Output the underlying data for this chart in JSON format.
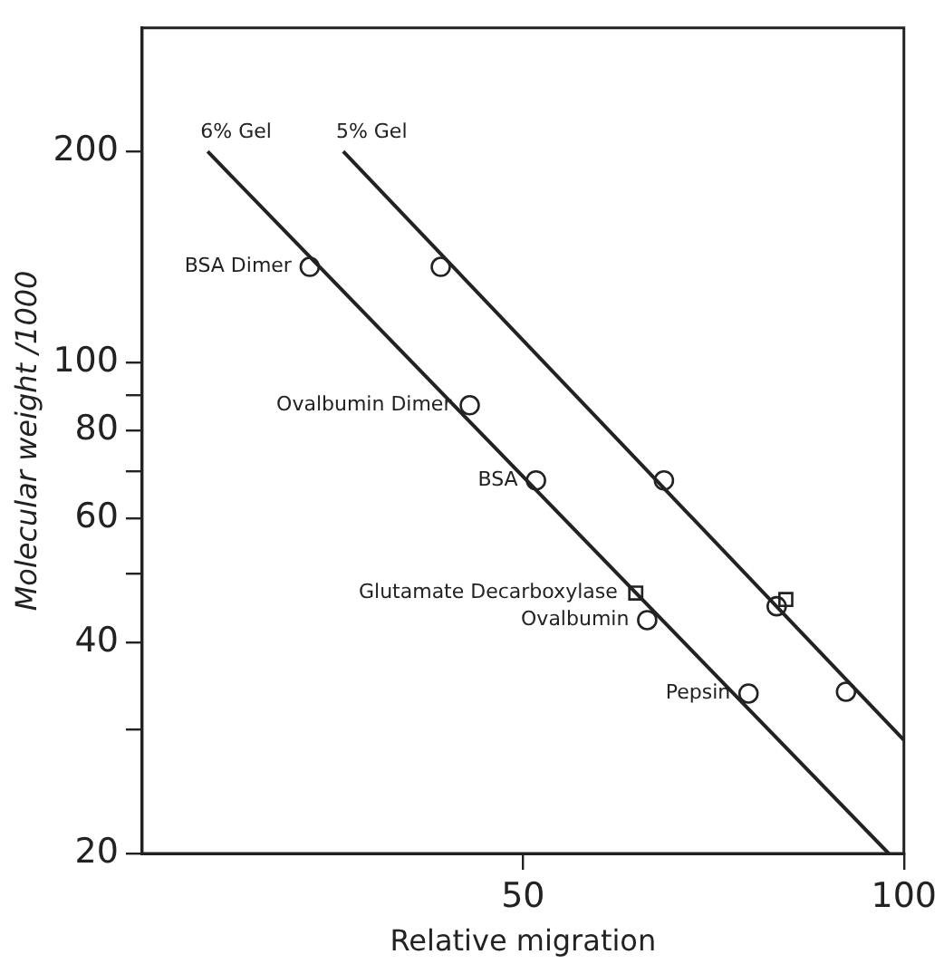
{
  "chart_data": {
    "type": "scatter",
    "xlabel": "Relative migration",
    "ylabel": "Molecular weight /1000",
    "xlim": [
      0,
      100
    ],
    "xticks": [
      50,
      100
    ],
    "ylim": [
      20,
      300
    ],
    "yticks": [
      20,
      {
        "value": 30,
        "label": null
      },
      40,
      {
        "value": 50,
        "label": null
      },
      60,
      {
        "value": 70,
        "label": null
      },
      80,
      {
        "value": 90,
        "label": null
      },
      100,
      200
    ],
    "log": "y",
    "grid": false,
    "legend": false,
    "series": [
      {
        "name": "6% Gel",
        "type": "line",
        "color": "#222222",
        "marker": "none",
        "x": [
          8.6,
          98
        ],
        "values": [
          200,
          20
        ]
      },
      {
        "name": "5% Gel",
        "type": "line",
        "color": "#222222",
        "marker": "none",
        "x": [
          26.4,
          100
        ],
        "values": [
          200,
          29
        ]
      },
      {
        "color": "#222222",
        "marker": "circle",
        "x": [
          22,
          43,
          51.7,
          66.3,
          79.6
        ],
        "values": [
          137,
          87,
          68,
          43,
          33.8
        ]
      },
      {
        "color": "#222222",
        "marker": "square",
        "x": [
          64.8
        ],
        "values": [
          47
        ]
      },
      {
        "color": "#222222",
        "marker": "circle",
        "x": [
          39.2,
          68.5,
          83.3,
          92.4
        ],
        "values": [
          137,
          68,
          45,
          34
        ]
      },
      {
        "color": "#222222",
        "marker": "square",
        "x": [
          84.5
        ],
        "values": [
          46
        ]
      }
    ],
    "annotations": [
      {
        "text": "BSA Dimer",
        "x": 22,
        "y": 137
      },
      {
        "text": "Ovalbumin Dimer",
        "x": 43,
        "y": 87
      },
      {
        "text": "BSA",
        "x": 51.7,
        "y": 68
      },
      {
        "text": "Glutamate Decarboxylase",
        "x": 64.8,
        "y": 47
      },
      {
        "text": "Ovalbumin",
        "x": 66.3,
        "y": 43
      },
      {
        "text": "Pepsin",
        "x": 79.6,
        "y": 33.8
      }
    ]
  }
}
